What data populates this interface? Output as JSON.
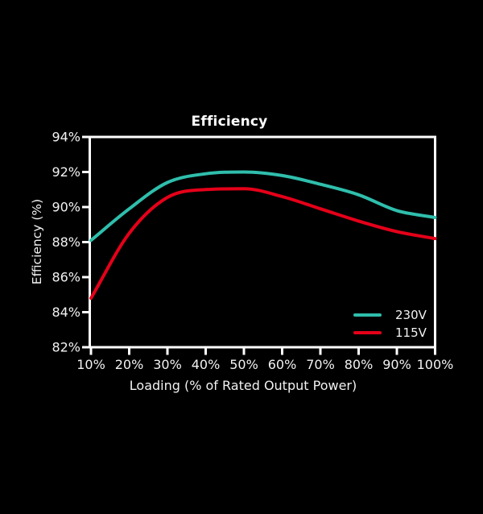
{
  "figure": {
    "background": "#000000",
    "axis_color": "#ffffff",
    "text_color": "#f2f2f2"
  },
  "chart_data": {
    "type": "line",
    "title": "Efficiency",
    "xlabel": "Loading (% of Rated Output Power)",
    "ylabel": "Efficiency (%)",
    "categories": [
      "10%",
      "20%",
      "30%",
      "40%",
      "50%",
      "60%",
      "70%",
      "80%",
      "90%",
      "100%"
    ],
    "x_values": [
      10,
      20,
      30,
      40,
      50,
      60,
      70,
      80,
      90,
      100
    ],
    "y_tick_labels": [
      "82%",
      "84%",
      "86%",
      "88%",
      "90%",
      "92%",
      "94%"
    ],
    "y_tick_values": [
      82,
      84,
      86,
      88,
      90,
      92,
      94
    ],
    "xlim": [
      10,
      100
    ],
    "ylim": [
      82,
      94
    ],
    "grid": false,
    "legend_position": "inside-bottom-right",
    "series": [
      {
        "name": "230V",
        "color": "#2FBEAC",
        "values": [
          88.1,
          89.9,
          91.4,
          91.9,
          92.0,
          91.8,
          91.3,
          90.7,
          89.8,
          89.4
        ]
      },
      {
        "name": "115V",
        "color": "#E50019",
        "values": [
          84.8,
          88.5,
          90.55,
          91.0,
          91.05,
          90.6,
          89.9,
          89.2,
          88.6,
          88.2
        ]
      }
    ]
  }
}
